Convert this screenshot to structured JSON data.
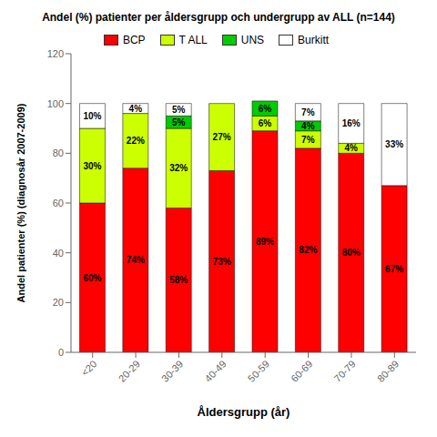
{
  "chart_data": {
    "type": "bar",
    "stacked": true,
    "title": "Andel (%) patienter per åldersgrupp och undergrupp av ALL (n=144)",
    "xlabel": "Åldersgrupp (år)",
    "ylabel": "Andel patienter (%) (diagnosår 2007-2009)",
    "categories": [
      "<20",
      "20-29",
      "30-39",
      "40-49",
      "50-59",
      "60-69",
      "70-79",
      "80-89"
    ],
    "series": [
      {
        "name": "BCP",
        "color": "#FF0000",
        "values": [
          60,
          74,
          58,
          73,
          89,
          82,
          80,
          67
        ],
        "value_labels": [
          "60%",
          "74%",
          "58%",
          "73%",
          "89%",
          "82%",
          "80%",
          "67%"
        ]
      },
      {
        "name": "T ALL",
        "color": "#CCFF00",
        "values": [
          30,
          22,
          32,
          27,
          6,
          7,
          4,
          0
        ],
        "value_labels": [
          "30%",
          "22%",
          "32%",
          "27%",
          "6%",
          "7%",
          "4%",
          null
        ]
      },
      {
        "name": "UNS",
        "color": "#00CC00",
        "values": [
          0,
          0,
          5,
          0,
          6,
          4,
          0,
          0
        ],
        "value_labels": [
          null,
          null,
          "5%",
          null,
          "6%",
          "4%",
          null,
          null
        ]
      },
      {
        "name": "Burkitt",
        "color": "#FFFFFF",
        "values": [
          10,
          4,
          5,
          0,
          0,
          7,
          16,
          33
        ],
        "value_labels": [
          "10%",
          "4%",
          "5%",
          null,
          null,
          "7%",
          "16%",
          "33%"
        ]
      }
    ],
    "ylim": [
      0,
      120
    ],
    "yticks": [
      0,
      20,
      40,
      60,
      80,
      100,
      120
    ],
    "data_labels": true,
    "legend": "top",
    "grid": false
  }
}
